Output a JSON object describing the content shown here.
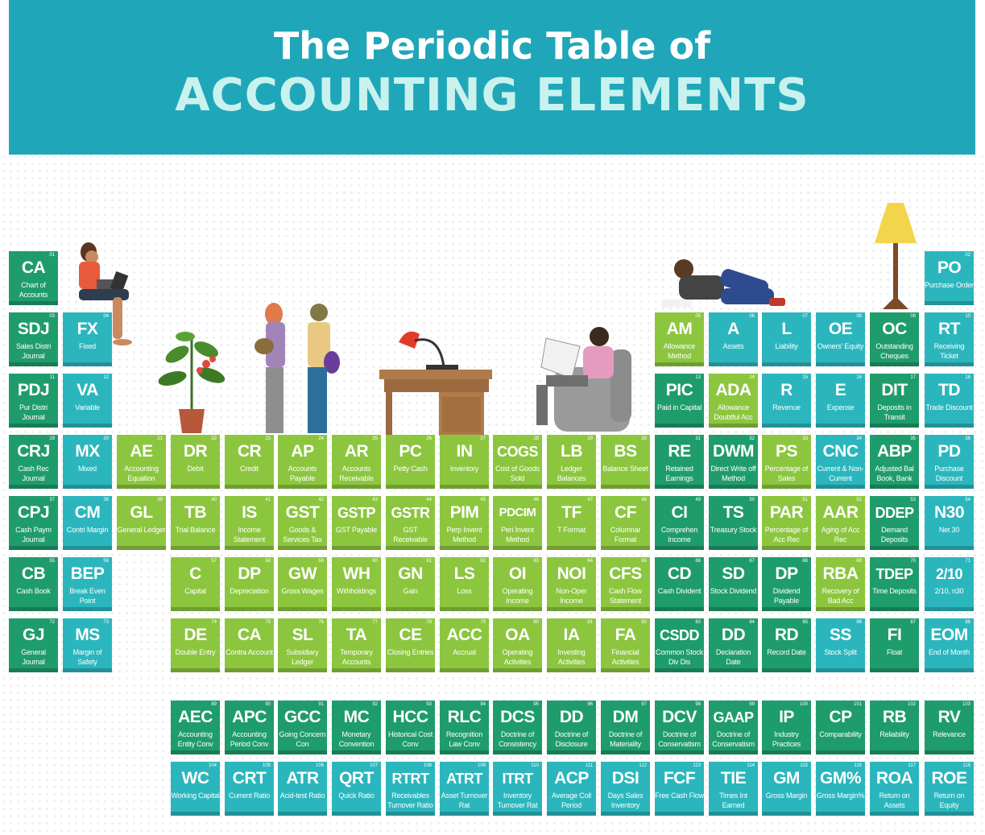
{
  "title": {
    "line1": "The Periodic Table of",
    "line2": "ACCOUNTING ELEMENTS"
  },
  "colors": {
    "header": "#1fa7b9",
    "title_white": "#ffffff",
    "title_accent": "#c9f2ee",
    "dark_teal": "#1f9c6c",
    "light_teal": "#2bb6bd",
    "lime_green": "#8cc63f"
  },
  "illustrations": [
    "woman-with-laptop",
    "potted-plant",
    "two-women-talking",
    "desk-lamp",
    "wooden-desk",
    "man-reading-newspaper-in-armchair",
    "man-lying-reading",
    "floor-lamp"
  ],
  "elements": [
    {
      "num": "01",
      "sym": "CA",
      "name": "Chart of Accounts",
      "color": "dt"
    },
    {
      "num": "02",
      "sym": "PO",
      "name": "Purchase Order",
      "color": "lt"
    },
    {
      "num": "03",
      "sym": "SDJ",
      "name": "Sales Distri Journal",
      "color": "dt"
    },
    {
      "num": "04",
      "sym": "FX",
      "name": "Fixed",
      "color": "lt"
    },
    {
      "num": "05",
      "sym": "AM",
      "name": "Allowance Method",
      "color": "lg"
    },
    {
      "num": "06",
      "sym": "A",
      "name": "Assets",
      "color": "lt"
    },
    {
      "num": "07",
      "sym": "L",
      "name": "Liability",
      "color": "lt"
    },
    {
      "num": "08",
      "sym": "OE",
      "name": "Owners' Equity",
      "color": "lt"
    },
    {
      "num": "09",
      "sym": "OC",
      "name": "Outstanding Cheques",
      "color": "dt"
    },
    {
      "num": "10",
      "sym": "RT",
      "name": "Receiving Ticket",
      "color": "lt"
    },
    {
      "num": "11",
      "sym": "PDJ",
      "name": "Pur Distri Journal",
      "color": "dt"
    },
    {
      "num": "12",
      "sym": "VA",
      "name": "Variable",
      "color": "lt"
    },
    {
      "num": "13",
      "sym": "PIC",
      "name": "Paid in Capital",
      "color": "dt"
    },
    {
      "num": "14",
      "sym": "ADA",
      "name": "Allowance Doubtful Acc",
      "color": "lg"
    },
    {
      "num": "15",
      "sym": "R",
      "name": "Revenue",
      "color": "lt"
    },
    {
      "num": "16",
      "sym": "E",
      "name": "Expense",
      "color": "lt"
    },
    {
      "num": "17",
      "sym": "DIT",
      "name": "Deposits in Transit",
      "color": "dt"
    },
    {
      "num": "18",
      "sym": "TD",
      "name": "Trade Discount",
      "color": "lt"
    },
    {
      "num": "19",
      "sym": "CRJ",
      "name": "Cash Rec Journal",
      "color": "dt"
    },
    {
      "num": "20",
      "sym": "MX",
      "name": "Mixed",
      "color": "lt"
    },
    {
      "num": "21",
      "sym": "AE",
      "name": "Accounting Equation",
      "color": "lg"
    },
    {
      "num": "22",
      "sym": "DR",
      "name": "Debit",
      "color": "lg"
    },
    {
      "num": "23",
      "sym": "CR",
      "name": "Credit",
      "color": "lg"
    },
    {
      "num": "24",
      "sym": "AP",
      "name": "Accounts Payable",
      "color": "lg"
    },
    {
      "num": "25",
      "sym": "AR",
      "name": "Accounts Receivable",
      "color": "lg"
    },
    {
      "num": "26",
      "sym": "PC",
      "name": "Petty Cash",
      "color": "lg"
    },
    {
      "num": "27",
      "sym": "IN",
      "name": "Inventory",
      "color": "lg"
    },
    {
      "num": "28",
      "sym": "COGS",
      "name": "Cost of Goods Sold",
      "color": "lg"
    },
    {
      "num": "29",
      "sym": "LB",
      "name": "Ledger Balances",
      "color": "lg"
    },
    {
      "num": "30",
      "sym": "BS",
      "name": "Balance Sheet",
      "color": "lg"
    },
    {
      "num": "31",
      "sym": "RE",
      "name": "Retained Earnings",
      "color": "dt"
    },
    {
      "num": "32",
      "sym": "DWM",
      "name": "Direct Write off Method",
      "color": "dt"
    },
    {
      "num": "33",
      "sym": "PS",
      "name": "Percentage of Sales",
      "color": "lg"
    },
    {
      "num": "34",
      "sym": "CNC",
      "name": "Current & Non-Current",
      "color": "lt"
    },
    {
      "num": "35",
      "sym": "ABP",
      "name": "Adjusted Bal Book, Bank",
      "color": "dt"
    },
    {
      "num": "36",
      "sym": "PD",
      "name": "Purchase Discount",
      "color": "lt"
    },
    {
      "num": "37",
      "sym": "CPJ",
      "name": "Cash Paym Journal",
      "color": "dt"
    },
    {
      "num": "38",
      "sym": "CM",
      "name": "Contri Margin",
      "color": "lt"
    },
    {
      "num": "39",
      "sym": "GL",
      "name": "General Ledger",
      "color": "lg"
    },
    {
      "num": "40",
      "sym": "TB",
      "name": "Trial Balance",
      "color": "lg"
    },
    {
      "num": "41",
      "sym": "IS",
      "name": "Income Statement",
      "color": "lg"
    },
    {
      "num": "42",
      "sym": "GST",
      "name": "Goods & Services Tax",
      "color": "lg"
    },
    {
      "num": "43",
      "sym": "GSTP",
      "name": "GST Payable",
      "color": "lg"
    },
    {
      "num": "44",
      "sym": "GSTR",
      "name": "GST Receivable",
      "color": "lg"
    },
    {
      "num": "45",
      "sym": "PIM",
      "name": "Perp Invent Method",
      "color": "lg"
    },
    {
      "num": "46",
      "sym": "PDCIM",
      "name": "Peri Invent Method",
      "color": "lg"
    },
    {
      "num": "47",
      "sym": "TF",
      "name": "T Format",
      "color": "lg"
    },
    {
      "num": "48",
      "sym": "CF",
      "name": "Columnar Format",
      "color": "lg"
    },
    {
      "num": "49",
      "sym": "CI",
      "name": "Comprehen Income",
      "color": "dt"
    },
    {
      "num": "50",
      "sym": "TS",
      "name": "Treasury Stock",
      "color": "dt"
    },
    {
      "num": "51",
      "sym": "PAR",
      "name": "Percentage of Acc Rec",
      "color": "lg"
    },
    {
      "num": "52",
      "sym": "AAR",
      "name": "Aging of Acc Rec",
      "color": "lg"
    },
    {
      "num": "53",
      "sym": "DDEP",
      "name": "Demand Deposits",
      "color": "dt"
    },
    {
      "num": "54",
      "sym": "N30",
      "name": "Net 30",
      "color": "lt"
    },
    {
      "num": "55",
      "sym": "CB",
      "name": "Cash Book",
      "color": "dt"
    },
    {
      "num": "56",
      "sym": "BEP",
      "name": "Break Even Point",
      "color": "lt"
    },
    {
      "num": "57",
      "sym": "C",
      "name": "Capital",
      "color": "lg"
    },
    {
      "num": "58",
      "sym": "DP",
      "name": "Depreciation",
      "color": "lg"
    },
    {
      "num": "59",
      "sym": "GW",
      "name": "Gross Wages",
      "color": "lg"
    },
    {
      "num": "60",
      "sym": "WH",
      "name": "Withholdings",
      "color": "lg"
    },
    {
      "num": "61",
      "sym": "GN",
      "name": "Gain",
      "color": "lg"
    },
    {
      "num": "62",
      "sym": "LS",
      "name": "Loss",
      "color": "lg"
    },
    {
      "num": "63",
      "sym": "OI",
      "name": "Operating Income",
      "color": "lg"
    },
    {
      "num": "64",
      "sym": "NOI",
      "name": "Non-Oper Income",
      "color": "lg"
    },
    {
      "num": "65",
      "sym": "CFS",
      "name": "Cash Flow Statement",
      "color": "lg"
    },
    {
      "num": "66",
      "sym": "CD",
      "name": "Cash Divident",
      "color": "dt"
    },
    {
      "num": "67",
      "sym": "SD",
      "name": "Stock Dividend",
      "color": "dt"
    },
    {
      "num": "68",
      "sym": "DP",
      "name": "Dividend Payable",
      "color": "dt"
    },
    {
      "num": "69",
      "sym": "RBA",
      "name": "Recovery of Bad Acc",
      "color": "lg"
    },
    {
      "num": "70",
      "sym": "TDEP",
      "name": "Time Deposits",
      "color": "dt"
    },
    {
      "num": "71",
      "sym": "2/10",
      "name": "2/10, n30",
      "color": "lt"
    },
    {
      "num": "72",
      "sym": "GJ",
      "name": "General Journal",
      "color": "dt"
    },
    {
      "num": "73",
      "sym": "MS",
      "name": "Margin of Safety",
      "color": "lt"
    },
    {
      "num": "74",
      "sym": "DE",
      "name": "Double Entry",
      "color": "lg"
    },
    {
      "num": "75",
      "sym": "CA",
      "name": "Contra Account",
      "color": "lg"
    },
    {
      "num": "76",
      "sym": "SL",
      "name": "Subsidiary Ledger",
      "color": "lg"
    },
    {
      "num": "77",
      "sym": "TA",
      "name": "Temporary Accounts",
      "color": "lg"
    },
    {
      "num": "78",
      "sym": "CE",
      "name": "Closing Entries",
      "color": "lg"
    },
    {
      "num": "79",
      "sym": "ACC",
      "name": "Accrual",
      "color": "lg"
    },
    {
      "num": "80",
      "sym": "OA",
      "name": "Operating Activities",
      "color": "lg"
    },
    {
      "num": "81",
      "sym": "IA",
      "name": "Investing Activities",
      "color": "lg"
    },
    {
      "num": "82",
      "sym": "FA",
      "name": "Financial Activities",
      "color": "lg"
    },
    {
      "num": "83",
      "sym": "CSDD",
      "name": "Common Stock Div Dis",
      "color": "dt"
    },
    {
      "num": "84",
      "sym": "DD",
      "name": "Declaration Date",
      "color": "dt"
    },
    {
      "num": "85",
      "sym": "RD",
      "name": "Record Date",
      "color": "dt"
    },
    {
      "num": "86",
      "sym": "SS",
      "name": "Stock Split",
      "color": "lt"
    },
    {
      "num": "87",
      "sym": "FI",
      "name": "Float",
      "color": "dt"
    },
    {
      "num": "88",
      "sym": "EOM",
      "name": "End of Month",
      "color": "lt"
    },
    {
      "num": "89",
      "sym": "AEC",
      "name": "Accounting Entity Conv",
      "color": "dt"
    },
    {
      "num": "90",
      "sym": "APC",
      "name": "Accounting Period Conv",
      "color": "dt"
    },
    {
      "num": "91",
      "sym": "GCC",
      "name": "Going Concern Con",
      "color": "dt"
    },
    {
      "num": "92",
      "sym": "MC",
      "name": "Monetary Convention",
      "color": "dt"
    },
    {
      "num": "93",
      "sym": "HCC",
      "name": "Historical Cost Conv",
      "color": "dt"
    },
    {
      "num": "94",
      "sym": "RLC",
      "name": "Recognition Law Conv",
      "color": "dt"
    },
    {
      "num": "95",
      "sym": "DCS",
      "name": "Doctrine of Consistency",
      "color": "dt"
    },
    {
      "num": "96",
      "sym": "DD",
      "name": "Doctrine of Disclosure",
      "color": "dt"
    },
    {
      "num": "97",
      "sym": "DM",
      "name": "Doctrine of Materiality",
      "color": "dt"
    },
    {
      "num": "98",
      "sym": "DCV",
      "name": "Doctrine of Conservatism",
      "color": "dt"
    },
    {
      "num": "99",
      "sym": "GAAP",
      "name": "Doctrine of Conservatism",
      "color": "dt"
    },
    {
      "num": "100",
      "sym": "IP",
      "name": "Industry Practices",
      "color": "dt"
    },
    {
      "num": "101",
      "sym": "CP",
      "name": "Comparability",
      "color": "dt"
    },
    {
      "num": "102",
      "sym": "RB",
      "name": "Reliability",
      "color": "dt"
    },
    {
      "num": "103",
      "sym": "RV",
      "name": "Relevance",
      "color": "dt"
    },
    {
      "num": "104",
      "sym": "WC",
      "name": "Working Capital",
      "color": "lt"
    },
    {
      "num": "105",
      "sym": "CRT",
      "name": "Current Ratio",
      "color": "lt"
    },
    {
      "num": "106",
      "sym": "ATR",
      "name": "Acid-test Ratio",
      "color": "lt"
    },
    {
      "num": "107",
      "sym": "QRT",
      "name": "Quick Ratio",
      "color": "lt"
    },
    {
      "num": "108",
      "sym": "RTRT",
      "name": "Receivables Turnover Ratio",
      "color": "lt"
    },
    {
      "num": "109",
      "sym": "ATRT",
      "name": "Asset Turnover Rat",
      "color": "lt"
    },
    {
      "num": "110",
      "sym": "ITRT",
      "name": "Inventory Turnover Rat",
      "color": "lt"
    },
    {
      "num": "111",
      "sym": "ACP",
      "name": "Average Coll Period",
      "color": "lt"
    },
    {
      "num": "112",
      "sym": "DSI",
      "name": "Days Sales Inventory",
      "color": "lt"
    },
    {
      "num": "113",
      "sym": "FCF",
      "name": "Free Cash Flow",
      "color": "lt"
    },
    {
      "num": "114",
      "sym": "TIE",
      "name": "Times Int Earned",
      "color": "lt"
    },
    {
      "num": "115",
      "sym": "GM",
      "name": "Gross Margin",
      "color": "lt"
    },
    {
      "num": "116",
      "sym": "GM%",
      "name": "Gross Margin%",
      "color": "lt"
    },
    {
      "num": "117",
      "sym": "ROA",
      "name": "Return on Assets",
      "color": "lt"
    },
    {
      "num": "118",
      "sym": "ROE",
      "name": "Return on Equity",
      "color": "lt"
    }
  ]
}
